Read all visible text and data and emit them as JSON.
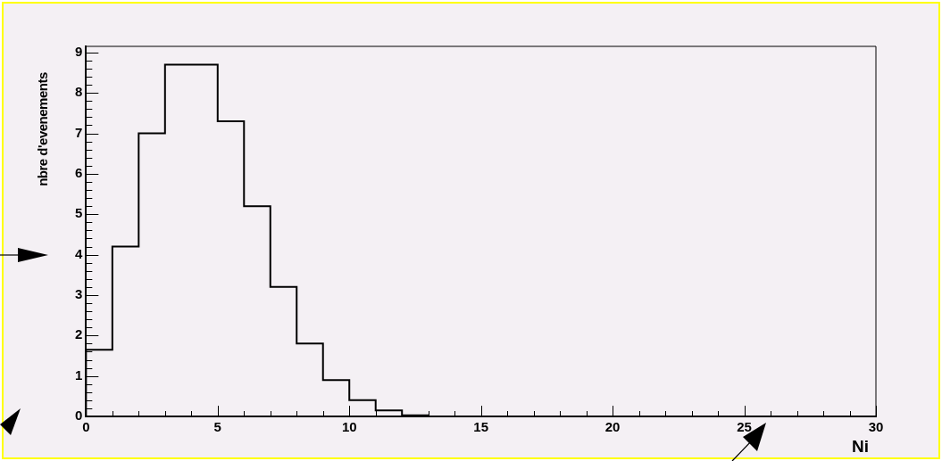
{
  "chart_data": {
    "type": "histogram",
    "bins": [
      0,
      1,
      2,
      3,
      4,
      5,
      6,
      7,
      8,
      9,
      10,
      11,
      12,
      13,
      14,
      15,
      16,
      17,
      18,
      19,
      20,
      21,
      22,
      23,
      24,
      25,
      26,
      27,
      28,
      29,
      30
    ],
    "values": [
      1.65,
      4.2,
      7.0,
      8.7,
      8.7,
      7.3,
      5.2,
      3.2,
      1.8,
      0.9,
      0.4,
      0.15,
      0.03,
      0,
      0,
      0,
      0,
      0,
      0,
      0,
      0,
      0,
      0,
      0,
      0,
      0,
      0,
      0,
      0,
      0
    ],
    "color": "#000000",
    "xlabel": "Ni",
    "ylabel": "nbre d'evenements",
    "xlim": [
      0,
      30
    ],
    "ylim": [
      0,
      9.15
    ],
    "xticks": [
      0,
      {
        "value": 1,
        "label": null
      },
      {
        "value": 2,
        "label": null
      },
      {
        "value": 3,
        "label": null
      },
      {
        "value": 4,
        "label": null
      },
      5,
      {
        "value": 6,
        "label": null
      },
      {
        "value": 7,
        "label": null
      },
      {
        "value": 8,
        "label": null
      },
      {
        "value": 9,
        "label": null
      },
      10,
      {
        "value": 11,
        "label": null
      },
      {
        "value": 12,
        "label": null
      },
      {
        "value": 13,
        "label": null
      },
      {
        "value": 14,
        "label": null
      },
      15,
      {
        "value": 16,
        "label": null
      },
      {
        "value": 17,
        "label": null
      },
      {
        "value": 18,
        "label": null
      },
      {
        "value": 19,
        "label": null
      },
      20,
      {
        "value": 21,
        "label": null
      },
      {
        "value": 22,
        "label": null
      },
      {
        "value": 23,
        "label": null
      },
      {
        "value": 24,
        "label": null
      },
      25,
      {
        "value": 26,
        "label": null
      },
      {
        "value": 27,
        "label": null
      },
      {
        "value": 28,
        "label": null
      },
      {
        "value": 29,
        "label": null
      },
      30
    ],
    "yticks": [
      0,
      {
        "value": 0.2,
        "label": null
      },
      {
        "value": 0.4,
        "label": null
      },
      {
        "value": 0.6,
        "label": null
      },
      {
        "value": 0.8,
        "label": null
      },
      1,
      {
        "value": 1.2,
        "label": null
      },
      {
        "value": 1.4,
        "label": null
      },
      {
        "value": 1.6,
        "label": null
      },
      {
        "value": 1.8,
        "label": null
      },
      2,
      {
        "value": 2.2,
        "label": null
      },
      {
        "value": 2.4,
        "label": null
      },
      {
        "value": 2.6,
        "label": null
      },
      {
        "value": 2.8,
        "label": null
      },
      3,
      {
        "value": 3.2,
        "label": null
      },
      {
        "value": 3.4,
        "label": null
      },
      {
        "value": 3.6,
        "label": null
      },
      {
        "value": 3.8,
        "label": null
      },
      4,
      {
        "value": 4.2,
        "label": null
      },
      {
        "value": 4.4,
        "label": null
      },
      {
        "value": 4.6,
        "label": null
      },
      {
        "value": 4.8,
        "label": null
      },
      5,
      {
        "value": 5.2,
        "label": null
      },
      {
        "value": 5.4,
        "label": null
      },
      {
        "value": 5.6,
        "label": null
      },
      {
        "value": 5.8,
        "label": null
      },
      6,
      {
        "value": 6.2,
        "label": null
      },
      {
        "value": 6.4,
        "label": null
      },
      {
        "value": 6.6,
        "label": null
      },
      {
        "value": 6.8,
        "label": null
      },
      7,
      {
        "value": 7.2,
        "label": null
      },
      {
        "value": 7.4,
        "label": null
      },
      {
        "value": 7.6,
        "label": null
      },
      {
        "value": 7.8,
        "label": null
      },
      8,
      {
        "value": 8.2,
        "label": null
      },
      {
        "value": 8.4,
        "label": null
      },
      {
        "value": 8.6,
        "label": null
      },
      {
        "value": 8.8,
        "label": null
      },
      9
    ],
    "grid": false,
    "legend": false
  }
}
